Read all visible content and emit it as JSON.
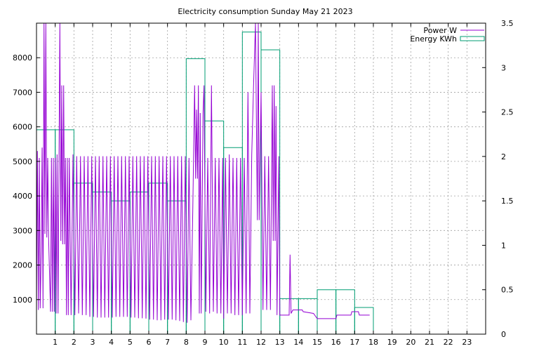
{
  "chart_data": {
    "type": "line",
    "title": "Electricity consumption Sunday May 21 2023",
    "grid": true,
    "legend_position": "top-right",
    "xlabel": "",
    "ylabel": "",
    "y2label": "",
    "xlim": [
      0,
      24
    ],
    "ylim": [
      0,
      9000
    ],
    "y2lim": [
      0,
      3.5
    ],
    "x_ticks": [
      1,
      2,
      3,
      4,
      5,
      6,
      7,
      8,
      9,
      10,
      11,
      12,
      13,
      14,
      15,
      16,
      17,
      18,
      19,
      20,
      21,
      22,
      23
    ],
    "y_ticks": [
      1000,
      2000,
      3000,
      4000,
      5000,
      6000,
      7000,
      8000
    ],
    "y2_ticks": [
      0,
      0.5,
      1,
      1.5,
      2,
      2.5,
      3,
      3.5
    ],
    "series": [
      {
        "name": "Power W",
        "color": "#9400d3",
        "axis": "y",
        "style": "line",
        "points": [
          [
            0.0,
            700
          ],
          [
            0.05,
            5300
          ],
          [
            0.1,
            700
          ],
          [
            0.15,
            5100
          ],
          [
            0.2,
            750
          ],
          [
            0.25,
            2400
          ],
          [
            0.3,
            5400
          ],
          [
            0.35,
            750
          ],
          [
            0.4,
            9000
          ],
          [
            0.45,
            2900
          ],
          [
            0.5,
            9000
          ],
          [
            0.55,
            2800
          ],
          [
            0.6,
            5100
          ],
          [
            0.65,
            2750
          ],
          [
            0.75,
            650
          ],
          [
            0.8,
            5100
          ],
          [
            0.85,
            650
          ],
          [
            0.9,
            5100
          ],
          [
            0.95,
            650
          ],
          [
            1.0,
            5100
          ],
          [
            1.05,
            600
          ],
          [
            1.1,
            5200
          ],
          [
            1.15,
            600
          ],
          [
            1.25,
            9000
          ],
          [
            1.3,
            2700
          ],
          [
            1.35,
            7200
          ],
          [
            1.4,
            2600
          ],
          [
            1.45,
            7200
          ],
          [
            1.5,
            2600
          ],
          [
            1.55,
            5100
          ],
          [
            1.6,
            550
          ],
          [
            1.65,
            5100
          ],
          [
            1.7,
            550
          ],
          [
            1.75,
            5100
          ],
          [
            1.85,
            550
          ],
          [
            1.95,
            5200
          ],
          [
            2.05,
            550
          ],
          [
            2.15,
            5150
          ],
          [
            2.25,
            600
          ],
          [
            2.35,
            5150
          ],
          [
            2.45,
            550
          ],
          [
            2.55,
            5150
          ],
          [
            2.65,
            550
          ],
          [
            2.75,
            5150
          ],
          [
            2.85,
            500
          ],
          [
            2.95,
            5150
          ],
          [
            3.05,
            500
          ],
          [
            3.15,
            5150
          ],
          [
            3.25,
            480
          ],
          [
            3.35,
            5150
          ],
          [
            3.45,
            480
          ],
          [
            3.55,
            5150
          ],
          [
            3.65,
            480
          ],
          [
            3.75,
            5150
          ],
          [
            3.85,
            480
          ],
          [
            3.95,
            5150
          ],
          [
            4.05,
            480
          ],
          [
            4.15,
            5150
          ],
          [
            4.25,
            500
          ],
          [
            4.35,
            5150
          ],
          [
            4.45,
            500
          ],
          [
            4.55,
            5150
          ],
          [
            4.65,
            500
          ],
          [
            4.75,
            5150
          ],
          [
            4.85,
            500
          ],
          [
            4.95,
            5150
          ],
          [
            5.05,
            480
          ],
          [
            5.15,
            5150
          ],
          [
            5.25,
            480
          ],
          [
            5.35,
            5150
          ],
          [
            5.45,
            460
          ],
          [
            5.55,
            5150
          ],
          [
            5.65,
            460
          ],
          [
            5.75,
            5150
          ],
          [
            5.85,
            450
          ],
          [
            5.95,
            5150
          ],
          [
            6.05,
            420
          ],
          [
            6.15,
            5150
          ],
          [
            6.25,
            420
          ],
          [
            6.35,
            5150
          ],
          [
            6.45,
            400
          ],
          [
            6.55,
            5150
          ],
          [
            6.65,
            400
          ],
          [
            6.75,
            5150
          ],
          [
            6.85,
            420
          ],
          [
            6.95,
            5150
          ],
          [
            7.05,
            420
          ],
          [
            7.15,
            5150
          ],
          [
            7.25,
            420
          ],
          [
            7.35,
            5150
          ],
          [
            7.45,
            400
          ],
          [
            7.55,
            5150
          ],
          [
            7.65,
            380
          ],
          [
            7.75,
            5150
          ],
          [
            7.85,
            350
          ],
          [
            7.95,
            5150
          ],
          [
            8.05,
            330
          ],
          [
            8.15,
            5100
          ],
          [
            8.25,
            400
          ],
          [
            8.35,
            3600
          ],
          [
            8.45,
            7200
          ],
          [
            8.5,
            4500
          ],
          [
            8.55,
            6500
          ],
          [
            8.6,
            4500
          ],
          [
            8.65,
            7200
          ],
          [
            8.7,
            600
          ],
          [
            8.75,
            6400
          ],
          [
            8.8,
            600
          ],
          [
            8.9,
            6400
          ],
          [
            8.95,
            7200
          ],
          [
            9.05,
            650
          ],
          [
            9.15,
            5100
          ],
          [
            9.25,
            600
          ],
          [
            9.35,
            7200
          ],
          [
            9.45,
            650
          ],
          [
            9.55,
            5100
          ],
          [
            9.65,
            600
          ],
          [
            9.75,
            5100
          ],
          [
            9.85,
            600
          ],
          [
            9.95,
            5100
          ],
          [
            10.0,
            450
          ],
          [
            10.1,
            5100
          ],
          [
            10.2,
            600
          ],
          [
            10.3,
            5200
          ],
          [
            10.4,
            600
          ],
          [
            10.5,
            5100
          ],
          [
            10.6,
            550
          ],
          [
            10.7,
            5100
          ],
          [
            10.8,
            550
          ],
          [
            10.9,
            5100
          ],
          [
            11.0,
            550
          ],
          [
            11.1,
            5100
          ],
          [
            11.2,
            600
          ],
          [
            11.3,
            7000
          ],
          [
            11.4,
            600
          ],
          [
            11.5,
            5200
          ],
          [
            11.6,
            7200
          ],
          [
            11.7,
            9000
          ],
          [
            11.8,
            3300
          ],
          [
            11.85,
            9000
          ],
          [
            11.9,
            3300
          ],
          [
            12.0,
            7000
          ],
          [
            12.1,
            700
          ],
          [
            12.2,
            5150
          ],
          [
            12.3,
            700
          ],
          [
            12.4,
            5150
          ],
          [
            12.5,
            700
          ],
          [
            12.6,
            7200
          ],
          [
            12.65,
            2700
          ],
          [
            12.7,
            7200
          ],
          [
            12.75,
            2700
          ],
          [
            12.8,
            6600
          ],
          [
            12.85,
            550
          ],
          [
            12.95,
            5150
          ],
          [
            13.0,
            550
          ],
          [
            13.5,
            550
          ],
          [
            13.55,
            2300
          ],
          [
            13.6,
            600
          ],
          [
            13.7,
            700
          ],
          [
            14.2,
            700
          ],
          [
            14.25,
            650
          ],
          [
            14.8,
            600
          ],
          [
            15.0,
            450
          ],
          [
            16.0,
            450
          ],
          [
            16.05,
            550
          ],
          [
            16.8,
            550
          ],
          [
            16.85,
            650
          ],
          [
            17.2,
            650
          ],
          [
            17.25,
            550
          ],
          [
            17.8,
            550
          ]
        ]
      },
      {
        "name": "Energy KWh",
        "color": "#009e73",
        "axis": "y2",
        "style": "steps",
        "bars": [
          [
            0,
            2.3
          ],
          [
            1,
            2.3
          ],
          [
            2,
            1.7
          ],
          [
            3,
            1.6
          ],
          [
            4,
            1.5
          ],
          [
            5,
            1.6
          ],
          [
            6,
            1.7
          ],
          [
            7,
            1.5
          ],
          [
            8,
            3.1
          ],
          [
            9,
            2.4
          ],
          [
            10,
            2.1
          ],
          [
            11,
            3.4
          ],
          [
            12,
            3.2
          ],
          [
            13,
            0.4
          ],
          [
            14,
            0.4
          ],
          [
            15,
            0.5
          ],
          [
            16,
            0.5
          ],
          [
            17,
            0.3
          ]
        ]
      }
    ]
  }
}
